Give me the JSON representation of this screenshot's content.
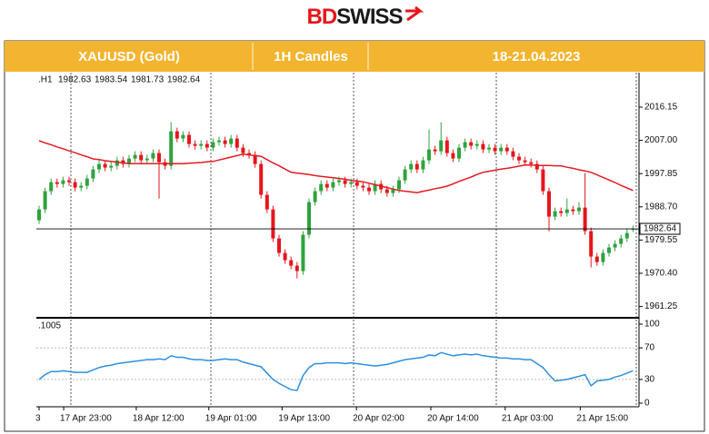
{
  "header": {
    "logo_a": "BD",
    "logo_b": "SWISS",
    "symbol": "XAUUSD (Gold)",
    "timeframe": "1H Candles",
    "dates": "18-21.04.2023"
  },
  "chart_data": {
    "type": "candlestick",
    "timeframe_label": ".H1",
    "open": [
      1985,
      1988,
      1993,
      1995.5,
      1995,
      1996,
      1995.5,
      1994,
      1994.5,
      1996.5,
      1999,
      2000.5,
      1999.5,
      2000,
      2001.5,
      2000.5,
      2002,
      2003,
      2001.5,
      2002,
      2003.5,
      2001,
      2000,
      2009.5,
      2007.5,
      2008.5,
      2006,
      2005.5,
      2006,
      2005,
      2006.5,
      2007,
      2006,
      2007.5,
      2005,
      2003.5,
      2003,
      2000.5,
      1992,
      1988,
      1980,
      1976,
      1974,
      1972.5,
      1971,
      1981,
      1990,
      1993,
      1995,
      1994,
      1995.5,
      1996,
      1995,
      1995.5,
      1994.5,
      1994,
      1993,
      1995,
      1993.5,
      1992.5,
      1993.5,
      1996,
      1999,
      2000.5,
      1999,
      2001.5,
      2004.5,
      2004,
      2007,
      2003.5,
      2002,
      2005,
      2006.5,
      2005.5,
      2006,
      2004.5,
      2005,
      2004,
      2005,
      2004,
      2002.5,
      2001.5,
      2001,
      2000.5,
      1999,
      1993,
      1986,
      1987.5,
      1987,
      1988,
      1987.5,
      1988.5,
      1982,
      1975,
      1973.5,
      1976,
      1977.5,
      1978.5,
      1980,
      1982.63
    ],
    "high": [
      1989,
      1994,
      1996.5,
      1996.5,
      1997,
      1997,
      1996.5,
      1995.5,
      1997.5,
      2000,
      2001.5,
      2001.5,
      2001,
      2002.5,
      2002.5,
      2003,
      2004,
      2004,
      2003,
      2004.5,
      2004.5,
      2002,
      2012,
      2010.5,
      2009.5,
      2009.5,
      2007,
      2007,
      2007,
      2007.5,
      2008,
      2008,
      2008.5,
      2008.5,
      2006,
      2004.5,
      2004,
      2001.5,
      1993,
      1989,
      1981,
      1977,
      1975,
      1973.5,
      1982,
      1991,
      1994,
      1996,
      1996,
      1996.5,
      1997,
      1997,
      1996.5,
      1996.5,
      1995.5,
      1995,
      1996,
      1996,
      1994.5,
      1994.5,
      1997,
      2000,
      2001.5,
      2001.5,
      2002.5,
      2010,
      2005.5,
      2012,
      2008,
      2004.5,
      2006,
      2007.5,
      2007.5,
      2007,
      2007,
      2006,
      2006,
      2006,
      2006,
      2005,
      2003.5,
      2002.5,
      2002,
      2001.5,
      2000,
      1994,
      1988.5,
      1988.5,
      1991,
      1989,
      1990,
      1998,
      1983,
      1976,
      1977,
      1978.5,
      1979.5,
      1981,
      1982.5,
      1983.54
    ],
    "low": [
      1984,
      1987,
      1992,
      1994,
      1994,
      1994.5,
      1993,
      1993,
      1993.5,
      1995.5,
      1998,
      1998.5,
      1998.5,
      1999,
      1999.5,
      1999.5,
      2001,
      2000.5,
      2000.5,
      2001,
      1991,
      1999,
      1999,
      2006.5,
      2006.5,
      2005,
      2004.5,
      2004.5,
      2004,
      2004,
      2005.5,
      2005,
      2005,
      2004,
      2002.5,
      2002,
      1999.5,
      1991,
      1987,
      1979,
      1975,
      1973,
      1971.5,
      1969,
      1970,
      1980,
      1989,
      1992,
      1993,
      1993,
      1994.5,
      1994,
      1994,
      1993.5,
      1993,
      1992,
      1992,
      1992.5,
      1991.5,
      1991.5,
      1992.5,
      1995,
      1998,
      1998,
      1998,
      2000.5,
      2003,
      2003,
      2002.5,
      2001,
      2001,
      2004,
      2004.5,
      2004.5,
      2003.5,
      2003.5,
      2003,
      2003,
      2003,
      2001.5,
      2000.5,
      2000,
      1999.5,
      1998,
      1992,
      1982,
      1985,
      1986,
      1986,
      1986.5,
      1986.5,
      1981,
      1972,
      1972.5,
      1972.5,
      1975,
      1976.5,
      1977.5,
      1979,
      1981.73
    ],
    "close": [
      1988,
      1993,
      1995.5,
      1995,
      1996,
      1995.5,
      1994,
      1994.5,
      1996.5,
      1999,
      2000.5,
      1999.5,
      2000,
      2001.5,
      2000.5,
      2002,
      2003,
      2001.5,
      2002,
      2003.5,
      2001,
      2000,
      2009.5,
      2007.5,
      2008.5,
      2006,
      2005.5,
      2006,
      2005,
      2006.5,
      2007,
      2006,
      2007.5,
      2005,
      2003.5,
      2003,
      2000.5,
      1992,
      1988,
      1980,
      1976,
      1974,
      1972.5,
      1971,
      1981,
      1990,
      1993,
      1995,
      1994,
      1995.5,
      1996,
      1995,
      1995.5,
      1994.5,
      1994,
      1993,
      1995,
      1993.5,
      1992.5,
      1993.5,
      1996,
      1999,
      2000.5,
      1999,
      2001.5,
      2004.5,
      2004,
      2007,
      2003.5,
      2002,
      2005,
      2006.5,
      2005.5,
      2006,
      2004.5,
      2005,
      2004,
      2005,
      2004,
      2002.5,
      2001.5,
      2001,
      2000.5,
      1999,
      1993,
      1986,
      1987.5,
      1987,
      1988,
      1987.5,
      1988.5,
      1982,
      1975,
      1973.5,
      1976,
      1977.5,
      1978.5,
      1980,
      1981.5,
      1982.64
    ],
    "up_color": "#2fa33d",
    "down_color": "#e5161c",
    "ma": {
      "color": "#e31b23",
      "values": [
        2006.9,
        2006.3,
        2005.8,
        2005.2,
        2004.7,
        2004.1,
        2003.6,
        2003.0,
        2002.5,
        2001.9,
        2001.7,
        2001.4,
        2001.2,
        2001.0,
        2000.8,
        2000.6,
        2000.6,
        2000.6,
        2000.6,
        2000.6,
        2000.6,
        2000.6,
        2000.6,
        2000.6,
        2000.6,
        2000.7,
        2000.8,
        2000.9,
        2001.1,
        2001.2,
        2001.6,
        2002.0,
        2002.4,
        2002.8,
        2003.2,
        2003.0,
        2002.8,
        2002.6,
        2001.7,
        2000.8,
        2000.0,
        1999.1,
        1998.2,
        1998.0,
        1997.8,
        1997.6,
        1997.3,
        1997.1,
        1996.9,
        1996.7,
        1996.5,
        1996.3,
        1996.0,
        1995.8,
        1995.6,
        1995.2,
        1994.8,
        1994.4,
        1994.0,
        1993.6,
        1993.2,
        1993.0,
        1992.8,
        1992.6,
        1993.0,
        1993.3,
        1993.7,
        1994.0,
        1994.4,
        1995.0,
        1995.7,
        1996.3,
        1996.9,
        1997.6,
        1998.2,
        1998.5,
        1998.8,
        1999.1,
        1999.3,
        1999.6,
        1999.9,
        2000.2,
        2000.2,
        2000.1,
        2000.1,
        2000.1,
        2000.0,
        2000.0,
        1999.6,
        1999.3,
        1998.9,
        1998.6,
        1998.2,
        1997.5,
        1996.8,
        1996.1,
        1995.4,
        1994.6,
        1993.9,
        1993.2
      ]
    },
    "ylim": [
      1958.15,
      2025.65
    ],
    "yticks": [
      2016.15,
      {
        "value": 2007,
        "label": "2007.00"
      },
      1997.85,
      {
        "value": 1988.7,
        "label": "1988.70"
      },
      1979.55,
      {
        "value": 1970.4,
        "label": "1970.40"
      },
      1961.25
    ],
    "xticks": [
      {
        "value": 0,
        "label": "3"
      },
      {
        "value": 4.1,
        "label": "17 Apr 23:00"
      },
      {
        "value": 16.2,
        "label": "18 Apr 12:00"
      },
      {
        "value": 28.3,
        "label": "19 Apr 01:00"
      },
      {
        "value": 40.5,
        "label": "19 Apr 13:00"
      },
      {
        "value": 52.9,
        "label": "20 Apr 02:00"
      },
      {
        "value": 65.3,
        "label": "20 Apr 14:00"
      },
      {
        "value": 77.7,
        "label": "21 Apr 03:00"
      },
      {
        "value": 90.2,
        "label": "21 Apr 15:00"
      }
    ],
    "rsi": {
      "label": ".1005",
      "color": "#2f8fe0",
      "values": [
        30,
        36,
        40,
        40,
        41,
        40,
        39,
        39,
        39,
        42,
        45,
        47,
        48,
        50,
        51,
        52,
        53,
        54,
        55,
        55,
        56,
        55,
        60,
        58,
        58,
        56,
        55,
        55,
        54,
        54,
        55,
        56,
        55,
        55,
        52,
        50,
        48,
        46,
        38,
        30,
        25,
        21,
        17,
        16,
        35,
        45,
        50,
        50,
        51,
        51,
        51,
        50,
        51,
        50,
        49,
        48,
        47,
        48,
        49,
        51,
        53,
        55,
        56,
        57,
        58,
        61,
        60,
        64,
        62,
        60,
        61,
        62,
        61,
        62,
        60,
        59,
        58,
        57,
        57,
        56,
        56,
        55,
        55,
        50,
        45,
        36,
        28,
        29,
        30,
        32,
        34,
        36,
        22,
        28,
        29,
        30,
        33,
        35,
        38,
        41
      ],
      "ylim": [
        0,
        100
      ],
      "yticks": [
        100,
        70,
        30,
        0
      ]
    }
  }
}
